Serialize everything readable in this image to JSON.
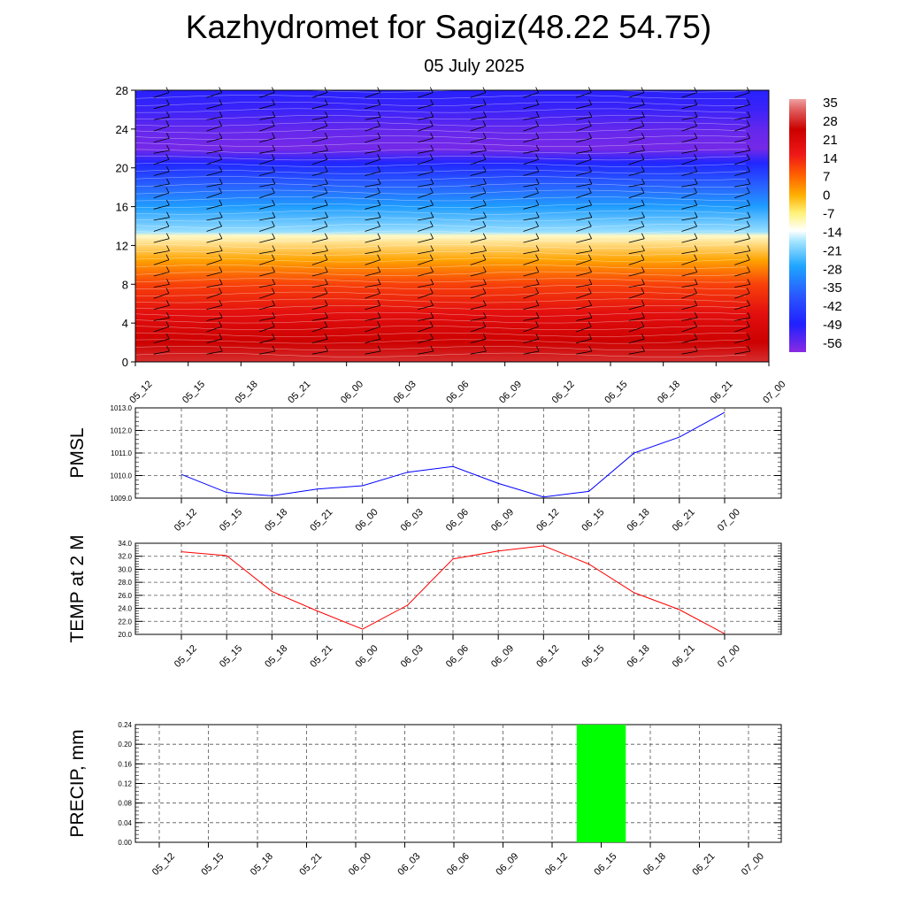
{
  "title": "Kazhydromet for Sagiz(48.22 54.75)",
  "subtitle": "05 July 2025",
  "colors": {
    "pmsl_line": "#0000ff",
    "temp_line": "#ff0000",
    "precip_bar": "#00ff00",
    "grid": "#555555"
  },
  "chart_data": [
    {
      "type": "heatmap",
      "name": "cross-section",
      "x_categories": [
        "05_12",
        "05_15",
        "05_18",
        "05_21",
        "06_00",
        "06_03",
        "06_06",
        "06_09",
        "06_12",
        "06_15",
        "06_18",
        "06_21",
        "07_00"
      ],
      "yticks": [
        "0",
        "4",
        "8",
        "12",
        "16",
        "20",
        "24",
        "28"
      ],
      "ylim": [
        0,
        28
      ],
      "colorbar_labels": [
        "35",
        "28",
        "21",
        "14",
        "7",
        "0",
        "-7",
        "-14",
        "-21",
        "-28",
        "-35",
        "-42",
        "-49",
        "-56"
      ],
      "colorbar_range": [
        -60,
        38
      ],
      "value_profile": [
        {
          "y": 0,
          "value": 30
        },
        {
          "y": 2,
          "value": 26
        },
        {
          "y": 5,
          "value": 20
        },
        {
          "y": 8,
          "value": 12
        },
        {
          "y": 10.5,
          "value": 2
        },
        {
          "y": 13,
          "value": -10
        },
        {
          "y": 13.4,
          "value": -18
        },
        {
          "y": 16,
          "value": -28
        },
        {
          "y": 18,
          "value": -36
        },
        {
          "y": 20.5,
          "value": -48
        },
        {
          "y": 22,
          "value": -58
        },
        {
          "y": 24,
          "value": -56
        },
        {
          "y": 26,
          "value": -52
        },
        {
          "y": 28,
          "value": -50
        }
      ],
      "wind_barbs": "wind barbs overlaid at every time step"
    },
    {
      "type": "line",
      "ylabel": "PMSL",
      "categories": [
        "05_12",
        "05_15",
        "05_18",
        "05_21",
        "06_00",
        "06_03",
        "06_06",
        "06_09",
        "06_12",
        "06_15",
        "06_18",
        "06_21",
        "07_00"
      ],
      "yticks": [
        "1009.0",
        "1010.0",
        "1011.0",
        "1012.0",
        "1013.0"
      ],
      "ylim": [
        1009.0,
        1013.0
      ],
      "values": [
        1010.05,
        1009.25,
        1009.1,
        1009.4,
        1009.55,
        1010.15,
        1010.4,
        1009.65,
        1009.05,
        1009.3,
        1011.0,
        1011.7,
        1012.8
      ]
    },
    {
      "type": "line",
      "ylabel": "TEMP at 2 M",
      "categories": [
        "05_12",
        "05_15",
        "05_18",
        "05_21",
        "06_00",
        "06_03",
        "06_06",
        "06_09",
        "06_12",
        "06_15",
        "06_18",
        "06_21",
        "07_00"
      ],
      "yticks": [
        "20.0",
        "22.0",
        "24.0",
        "26.0",
        "28.0",
        "30.0",
        "32.0",
        "34.0"
      ],
      "ylim": [
        20.0,
        34.0
      ],
      "values": [
        32.7,
        32.1,
        26.6,
        23.6,
        20.8,
        24.5,
        31.6,
        32.8,
        33.6,
        30.8,
        26.4,
        23.8,
        20.1
      ]
    },
    {
      "type": "bar",
      "ylabel": "PRECIP, mm",
      "categories": [
        "05_12",
        "05_15",
        "05_18",
        "05_21",
        "06_00",
        "06_03",
        "06_06",
        "06_09",
        "06_12",
        "06_15",
        "06_18",
        "06_21",
        "07_00"
      ],
      "yticks": [
        "0.00",
        "0.04",
        "0.08",
        "0.12",
        "0.16",
        "0.20",
        "0.24"
      ],
      "ylim": [
        0.0,
        0.24
      ],
      "values": [
        0,
        0,
        0,
        0,
        0,
        0,
        0,
        0,
        0,
        0.24,
        0,
        0,
        0
      ]
    }
  ]
}
